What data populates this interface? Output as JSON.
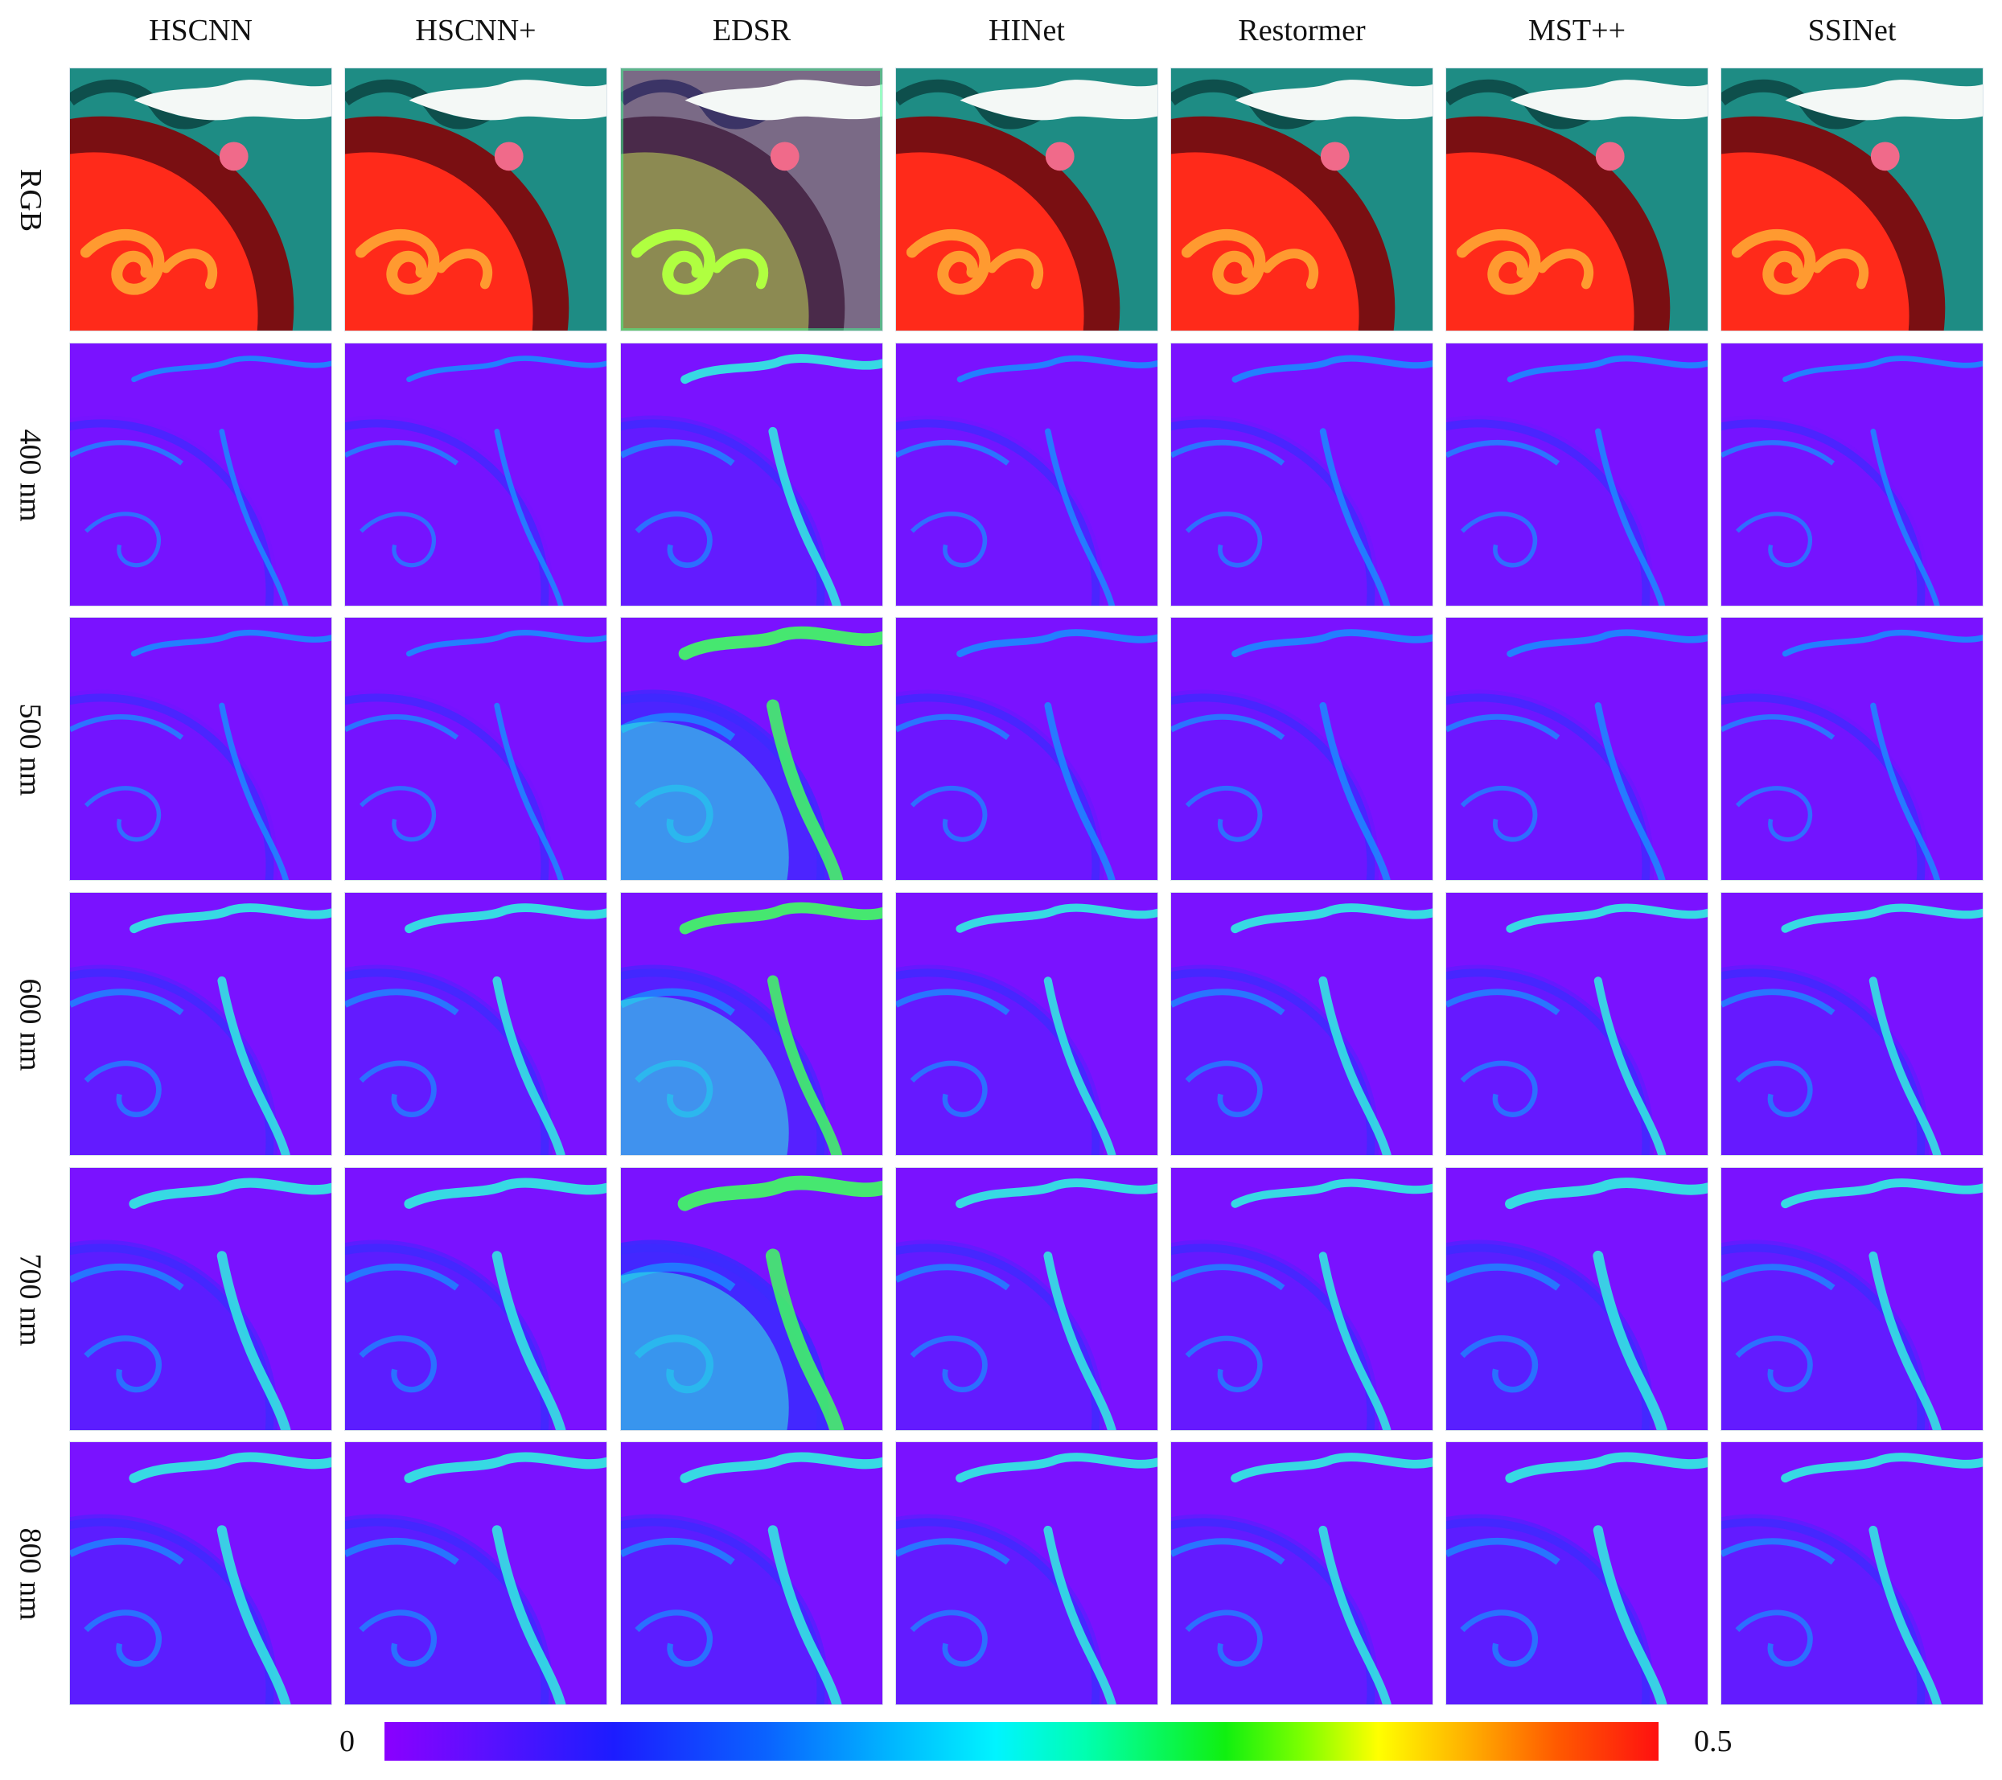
{
  "columns": [
    "HSCNN",
    "HSCNN+",
    "EDSR",
    "HINet",
    "Restormer",
    "MST++",
    "SSINet"
  ],
  "rows": [
    "RGB",
    "400 nm",
    "500 nm",
    "600 nm",
    "700 nm",
    "800 nm"
  ],
  "colorbar": {
    "min_label": "0",
    "max_label": "0.5",
    "colormap": [
      "#8a00ff",
      "#1c1cff",
      "#00b8ff",
      "#00f4ff",
      "#10f010",
      "#ffff00",
      "#ff5a00",
      "#ff1010"
    ]
  },
  "colors": {
    "rgb_background": "#1e8c84",
    "rgb_red_disc": "#ff2a1a",
    "rgb_cloud": "#f4f8f6",
    "error_base": "#7a12ff",
    "error_low": "#3a2cff",
    "error_mid": "#1a8cff",
    "error_high": "#30f0e0",
    "error_peak": "#40ff60"
  },
  "error_level": [
    [
      0,
      0,
      0,
      0,
      0,
      0,
      0
    ],
    [
      0.05,
      0.05,
      0.35,
      0.12,
      0.15,
      0.12,
      0.06
    ],
    [
      0.1,
      0.08,
      0.7,
      0.2,
      0.2,
      0.18,
      0.1
    ],
    [
      0.35,
      0.35,
      0.55,
      0.3,
      0.35,
      0.3,
      0.3
    ],
    [
      0.45,
      0.45,
      0.85,
      0.35,
      0.3,
      0.5,
      0.35
    ],
    [
      0.45,
      0.45,
      0.45,
      0.35,
      0.35,
      0.45,
      0.35
    ]
  ]
}
